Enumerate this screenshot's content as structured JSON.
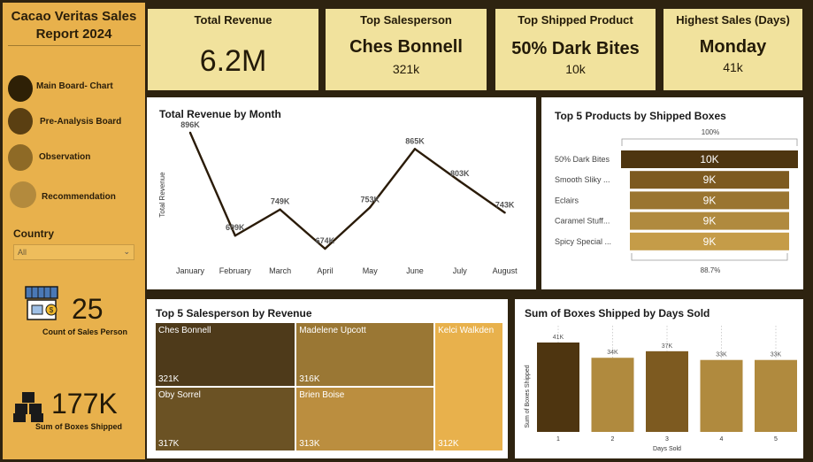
{
  "sidebar": {
    "title_line1": "Cacao Veritas Sales",
    "title_line2": "Report 2024",
    "nav": [
      {
        "label": "Main Board- Chart",
        "color": "#2e2006"
      },
      {
        "label": "Pre-Analysis Board",
        "color": "#5a3f12"
      },
      {
        "label": "Observation",
        "color": "#8e6a26"
      },
      {
        "label": "Recommendation",
        "color": "#b38a3d"
      }
    ],
    "country_label": "Country",
    "country_value": "All",
    "sales_person_count": "25",
    "sales_person_caption": "Count of Sales Person",
    "boxes_total": "177K",
    "boxes_caption": "Sum of Boxes Shipped"
  },
  "kpis": {
    "revenue_title": "Total Revenue",
    "revenue_value": "6.2M",
    "salesperson_title": "Top Salesperson",
    "salesperson_name": "Ches Bonnell",
    "salesperson_value": "321k",
    "product_title": "Top Shipped Product",
    "product_name": "50% Dark Bites",
    "product_value": "10k",
    "day_title": "Highest Sales (Days)",
    "day_name": "Monday",
    "day_value": "41k"
  },
  "chart_data": [
    {
      "type": "line",
      "title": "Total Revenue by Month",
      "ylabel": "Total Revenue",
      "xlabel": "",
      "categories": [
        "January",
        "February",
        "March",
        "April",
        "May",
        "June",
        "July",
        "August"
      ],
      "values": [
        896,
        699,
        749,
        674,
        753,
        865,
        803,
        743
      ],
      "value_labels": [
        "896K",
        "699K",
        "749K",
        "674K",
        "753K",
        "865K",
        "803K",
        "743K"
      ],
      "ylim": [
        674,
        896
      ],
      "color": "#2a1b08"
    },
    {
      "type": "bar",
      "orientation": "horizontal",
      "title": "Top 5 Products by Shipped Boxes",
      "categories": [
        "50% Dark Bites",
        "Smooth Sliky ...",
        "Eclairs",
        "Caramel Stuff...",
        "Spicy Special ..."
      ],
      "values": [
        10,
        9,
        9,
        9,
        9
      ],
      "value_labels": [
        "10K",
        "9K",
        "9K",
        "9K",
        "9K"
      ],
      "top_label": "100%",
      "bottom_label": "88.7%",
      "colors": [
        "#4e3510",
        "#7d5a20",
        "#9a7530",
        "#b08a3e",
        "#c59c48"
      ]
    },
    {
      "type": "treemap",
      "title": "Top 5 Salesperson by Revenue",
      "items": [
        {
          "name": "Ches Bonnell",
          "value": 321,
          "label": "321K",
          "color": "#4e3a1a"
        },
        {
          "name": "Madelene Upcott",
          "value": 316,
          "label": "316K",
          "color": "#9a7734"
        },
        {
          "name": "Kelci Walkden",
          "value": 312,
          "label": "312K",
          "color": "#e8b14c"
        },
        {
          "name": "Oby Sorrel",
          "value": 317,
          "label": "317K",
          "color": "#6b5224"
        },
        {
          "name": "Brien Boise",
          "value": 313,
          "label": "313K",
          "color": "#bb8e3f"
        }
      ]
    },
    {
      "type": "bar",
      "title": "Sum of Boxes Shipped by Days Sold",
      "xlabel": "Days Sold",
      "ylabel": "Sum of Boxes Shipped",
      "categories": [
        "1",
        "2",
        "3",
        "4",
        "5"
      ],
      "values": [
        41,
        34,
        37,
        33,
        33
      ],
      "value_labels": [
        "41K",
        "34K",
        "37K",
        "33K",
        "33K"
      ],
      "ylim": [
        0,
        41
      ],
      "colors": [
        "#4e3510",
        "#b08a3e",
        "#7d5a20",
        "#b08a3e",
        "#b08a3e"
      ]
    }
  ]
}
